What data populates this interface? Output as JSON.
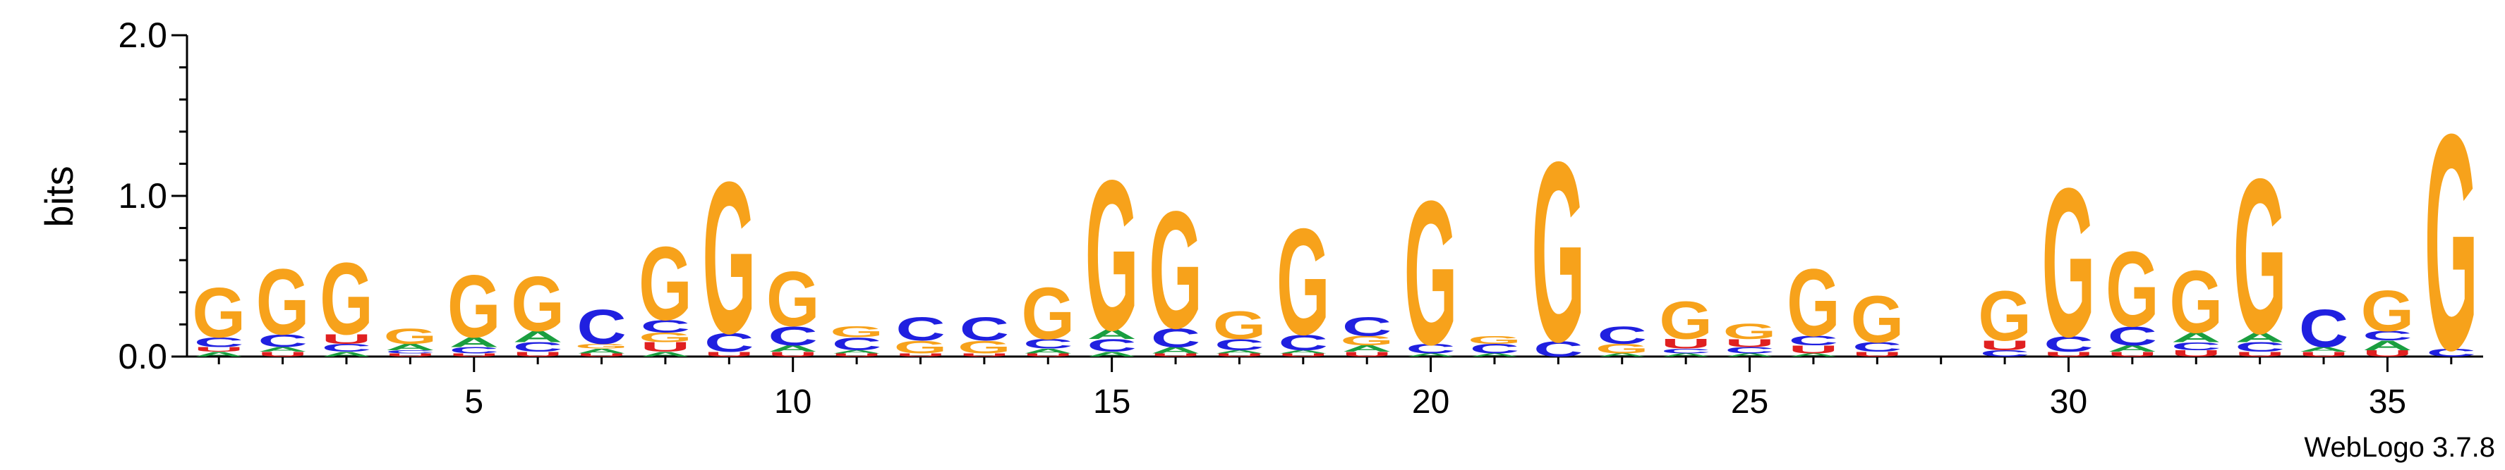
{
  "chart_data": {
    "type": "sequence-logo",
    "ylabel": "bits",
    "ylim": [
      0,
      2
    ],
    "yticks": [
      "0.0",
      "1.0",
      "2.0"
    ],
    "xlim": [
      0.5,
      36.5
    ],
    "xticks": [
      "5",
      "10",
      "15",
      "20",
      "25",
      "30",
      "35"
    ],
    "xtick_values": [
      5,
      10,
      15,
      20,
      25,
      30,
      35
    ],
    "credit": "WebLogo 3.7.8",
    "colors": {
      "G": "#f7a21b",
      "C": "#2020e0",
      "A": "#1a9e3f",
      "U": "#e02020"
    },
    "positions": [
      [
        [
          "A",
          0.03
        ],
        [
          "U",
          0.03
        ],
        [
          "C",
          0.06
        ],
        [
          "G",
          0.32
        ]
      ],
      [
        [
          "U",
          0.03
        ],
        [
          "A",
          0.03
        ],
        [
          "C",
          0.08
        ],
        [
          "G",
          0.42
        ]
      ],
      [
        [
          "A",
          0.03
        ],
        [
          "C",
          0.05
        ],
        [
          "U",
          0.06
        ],
        [
          "G",
          0.46
        ]
      ],
      [
        [
          "U",
          0.02
        ],
        [
          "C",
          0.02
        ],
        [
          "A",
          0.04
        ],
        [
          "G",
          0.1
        ]
      ],
      [
        [
          "U",
          0.02
        ],
        [
          "C",
          0.04
        ],
        [
          "A",
          0.06
        ],
        [
          "G",
          0.4
        ]
      ],
      [
        [
          "U",
          0.03
        ],
        [
          "C",
          0.06
        ],
        [
          "A",
          0.07
        ],
        [
          "G",
          0.35
        ]
      ],
      [
        [
          "U",
          0.02
        ],
        [
          "A",
          0.03
        ],
        [
          "G",
          0.03
        ],
        [
          "C",
          0.22
        ]
      ],
      [
        [
          "A",
          0.03
        ],
        [
          "U",
          0.06
        ],
        [
          "G",
          0.06
        ],
        [
          "C",
          0.08
        ],
        [
          "G",
          0.47
        ]
      ],
      [
        [
          "U",
          0.03
        ],
        [
          "C",
          0.12
        ],
        [
          "G",
          0.97
        ]
      ],
      [
        [
          "U",
          0.03
        ],
        [
          "A",
          0.04
        ],
        [
          "C",
          0.12
        ],
        [
          "G",
          0.35
        ]
      ],
      [
        [
          "U",
          0.02
        ],
        [
          "A",
          0.02
        ],
        [
          "C",
          0.08
        ],
        [
          "G",
          0.07
        ]
      ],
      [
        [
          "U",
          0.02
        ],
        [
          "G",
          0.08
        ],
        [
          "C",
          0.15
        ]
      ],
      [
        [
          "U",
          0.02
        ],
        [
          "G",
          0.08
        ],
        [
          "C",
          0.15
        ]
      ],
      [
        [
          "U",
          0.02
        ],
        [
          "A",
          0.03
        ],
        [
          "C",
          0.06
        ],
        [
          "G",
          0.33
        ]
      ],
      [
        [
          "A",
          0.03
        ],
        [
          "C",
          0.08
        ],
        [
          "A",
          0.06
        ],
        [
          "G",
          0.96
        ]
      ],
      [
        [
          "U",
          0.02
        ],
        [
          "A",
          0.04
        ],
        [
          "C",
          0.12
        ],
        [
          "G",
          0.75
        ]
      ],
      [
        [
          "U",
          0.02
        ],
        [
          "A",
          0.02
        ],
        [
          "C",
          0.07
        ],
        [
          "G",
          0.18
        ]
      ],
      [
        [
          "U",
          0.02
        ],
        [
          "A",
          0.02
        ],
        [
          "C",
          0.1
        ],
        [
          "G",
          0.68
        ]
      ],
      [
        [
          "U",
          0.03
        ],
        [
          "A",
          0.04
        ],
        [
          "G",
          0.06
        ],
        [
          "C",
          0.12
        ]
      ],
      [
        [
          "A",
          0.02
        ],
        [
          "C",
          0.06
        ],
        [
          "G",
          0.92
        ]
      ],
      [
        [
          "A",
          0.02
        ],
        [
          "C",
          0.06
        ],
        [
          "G",
          0.05
        ]
      ],
      [
        [
          "C",
          0.1
        ],
        [
          "G",
          1.15
        ]
      ],
      [
        [
          "A",
          0.02
        ],
        [
          "G",
          0.06
        ],
        [
          "C",
          0.11
        ]
      ],
      [
        [
          "A",
          0.02
        ],
        [
          "C",
          0.03
        ],
        [
          "U",
          0.06
        ],
        [
          "G",
          0.24
        ]
      ],
      [
        [
          "A",
          0.02
        ],
        [
          "C",
          0.04
        ],
        [
          "U",
          0.05
        ],
        [
          "G",
          0.1
        ]
      ],
      [
        [
          "A",
          0.02
        ],
        [
          "U",
          0.05
        ],
        [
          "C",
          0.06
        ],
        [
          "G",
          0.43
        ]
      ],
      [
        [
          "U",
          0.03
        ],
        [
          "C",
          0.06
        ],
        [
          "G",
          0.3
        ]
      ],
      [],
      [
        [
          "C",
          0.04
        ],
        [
          "U",
          0.06
        ],
        [
          "G",
          0.32
        ]
      ],
      [
        [
          "U",
          0.03
        ],
        [
          "C",
          0.1
        ],
        [
          "G",
          0.95
        ]
      ],
      [
        [
          "U",
          0.03
        ],
        [
          "A",
          0.04
        ],
        [
          "C",
          0.12
        ],
        [
          "G",
          0.48
        ]
      ],
      [
        [
          "U",
          0.04
        ],
        [
          "C",
          0.05
        ],
        [
          "A",
          0.06
        ],
        [
          "G",
          0.4
        ]
      ],
      [
        [
          "U",
          0.03
        ],
        [
          "C",
          0.06
        ],
        [
          "A",
          0.06
        ],
        [
          "G",
          0.99
        ]
      ],
      [
        [
          "U",
          0.03
        ],
        [
          "A",
          0.03
        ],
        [
          "C",
          0.24
        ]
      ],
      [
        [
          "U",
          0.04
        ],
        [
          "A",
          0.06
        ],
        [
          "C",
          0.06
        ],
        [
          "G",
          0.26
        ]
      ],
      [
        [
          "C",
          0.05
        ],
        [
          "G",
          1.38
        ]
      ]
    ]
  }
}
